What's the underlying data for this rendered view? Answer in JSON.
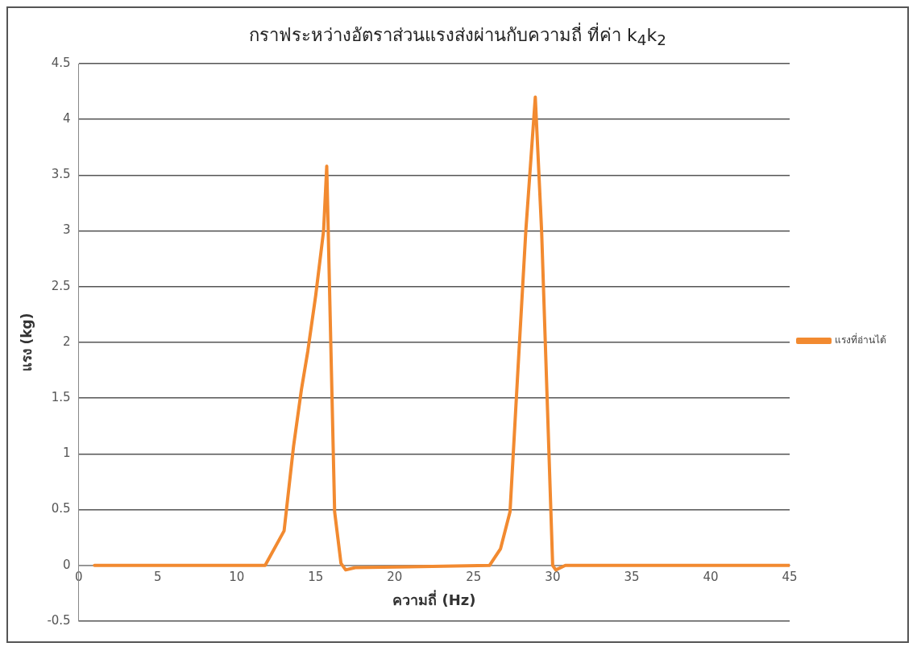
{
  "chart_data": {
    "type": "line",
    "title": "กราฟระหว่างอัตราส่วนแรงส่งผ่านกับความถี่ ที่ค่า k$_{4}$k$_{2}$",
    "xlabel": "ความถี่ (Hz)",
    "ylabel": "แรง (kg)",
    "x": [
      1,
      11.8,
      13,
      13.6,
      14.1,
      14.5,
      15,
      15.5,
      15.7,
      16.2,
      16.6,
      16.9,
      17.5,
      26,
      26.7,
      27.3,
      27.8,
      28.3,
      28.9,
      29.3,
      30,
      30.2,
      30.8,
      45
    ],
    "series": [
      {
        "name": "แรงที่อ่านได้",
        "color": "#f28a30",
        "values": [
          0,
          0,
          0.31,
          1.07,
          1.58,
          1.92,
          2.42,
          3.0,
          3.58,
          0.48,
          0.02,
          -0.04,
          -0.02,
          0,
          0.15,
          0.48,
          1.75,
          3.0,
          4.2,
          3.0,
          0,
          -0.04,
          0,
          0
        ]
      }
    ],
    "xlim": [
      0,
      45
    ],
    "xticks": [
      0,
      5,
      10,
      15,
      20,
      25,
      30,
      35,
      40,
      45
    ],
    "ylim": [
      -0.5,
      4.5
    ],
    "yticks": [
      -0.5,
      0,
      0.5,
      1,
      1.5,
      2,
      2.5,
      3,
      3.5,
      4,
      4.5
    ],
    "grid": "y",
    "legend": "right",
    "marker": "none",
    "line_style": "solid"
  }
}
